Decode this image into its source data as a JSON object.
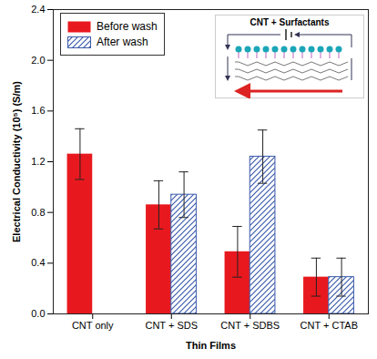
{
  "chart_data": {
    "type": "bar",
    "x_label": "Thin Films",
    "y_label": "Electrical Conductivity (10⁵) (S/m)",
    "categories": [
      "CNT only",
      "CNT + SDS",
      "CNT + SDBS",
      "CNT + CTAB"
    ],
    "series": [
      {
        "name": "Before wash",
        "color": "#e8191e",
        "values": [
          1.26,
          0.86,
          0.49,
          0.29
        ],
        "errors": [
          0.2,
          0.19,
          0.2,
          0.15
        ]
      },
      {
        "name": "After wash",
        "color": "#3b5bab",
        "values": [
          null,
          0.94,
          1.24,
          0.29
        ],
        "errors": [
          null,
          0.18,
          0.21,
          0.15
        ]
      }
    ],
    "ylim": [
      0,
      2.4
    ],
    "yticks": [
      {
        "value": 0,
        "label": "0.0"
      },
      0.4,
      0.8,
      1.2,
      1.6,
      {
        "value": 2,
        "label": "2.0"
      },
      2.4
    ],
    "legend": "top-left",
    "annotations": [
      "CNT + Surfactants"
    ]
  }
}
